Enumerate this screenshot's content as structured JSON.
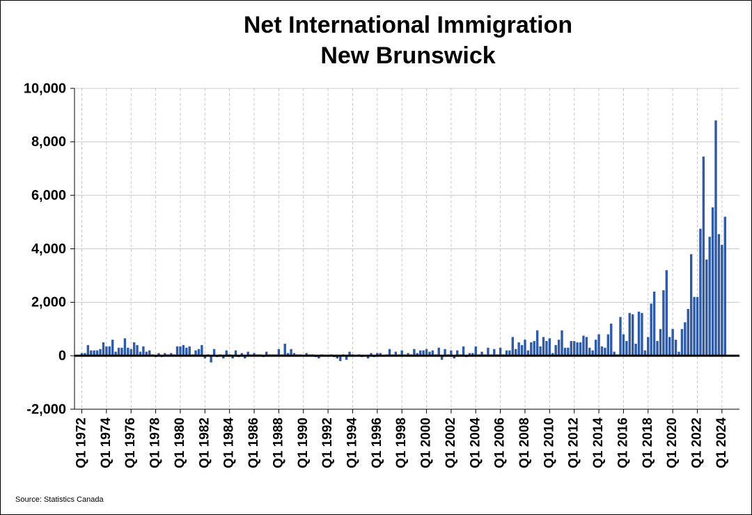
{
  "chart_data": {
    "type": "bar",
    "title": [
      "Net International Immigration",
      "New Brunswick"
    ],
    "source": "Source: Statistics Canada",
    "color": "#2e5aa8",
    "grid": true,
    "ylim": [
      -2000,
      10000
    ],
    "yticks": [
      {
        "value": -2000,
        "label": "-2,000"
      },
      0,
      {
        "value": 2000,
        "label": "2,000"
      },
      {
        "value": 4000,
        "label": "4,000"
      },
      {
        "value": 6000,
        "label": "6,000"
      },
      {
        "value": 8000,
        "label": "8,000"
      },
      {
        "value": 10000,
        "label": "10,000"
      }
    ],
    "categories": [
      "Q1 1972",
      null,
      null,
      null,
      null,
      null,
      null,
      null,
      "Q1 1974",
      null,
      null,
      null,
      null,
      null,
      null,
      null,
      "Q1 1976",
      null,
      null,
      null,
      null,
      null,
      null,
      null,
      "Q1 1978",
      null,
      null,
      null,
      null,
      null,
      null,
      null,
      "Q1 1980",
      null,
      null,
      null,
      null,
      null,
      null,
      null,
      "Q1 1982",
      null,
      null,
      null,
      null,
      null,
      null,
      null,
      "Q1 1984",
      null,
      null,
      null,
      null,
      null,
      null,
      null,
      "Q1 1986",
      null,
      null,
      null,
      null,
      null,
      null,
      null,
      "Q1 1988",
      null,
      null,
      null,
      null,
      null,
      null,
      null,
      "Q1 1990",
      null,
      null,
      null,
      null,
      null,
      null,
      null,
      "Q1 1992",
      null,
      null,
      null,
      null,
      null,
      null,
      null,
      "Q1 1994",
      null,
      null,
      null,
      null,
      null,
      null,
      null,
      "Q1 1996",
      null,
      null,
      null,
      null,
      null,
      null,
      null,
      "Q1 1998",
      null,
      null,
      null,
      null,
      null,
      null,
      null,
      "Q1 2000",
      null,
      null,
      null,
      null,
      null,
      null,
      null,
      "Q1 2002",
      null,
      null,
      null,
      null,
      null,
      null,
      null,
      "Q1 2004",
      null,
      null,
      null,
      null,
      null,
      null,
      null,
      "Q1 2006",
      null,
      null,
      null,
      null,
      null,
      null,
      null,
      "Q1 2008",
      null,
      null,
      null,
      null,
      null,
      null,
      null,
      "Q1 2010",
      null,
      null,
      null,
      null,
      null,
      null,
      null,
      "Q1 2012",
      null,
      null,
      null,
      null,
      null,
      null,
      null,
      "Q1 2014",
      null,
      null,
      null,
      null,
      null,
      null,
      null,
      "Q1 2016",
      null,
      null,
      null,
      null,
      null,
      null,
      null,
      "Q1 2018",
      null,
      null,
      null,
      null,
      null,
      null,
      null,
      "Q1 2020",
      null,
      null,
      null,
      null,
      null,
      null,
      null,
      "Q1 2022",
      null,
      null,
      null,
      null,
      null,
      null,
      null,
      "Q1 2024",
      null
    ],
    "values": [
      100,
      100,
      400,
      200,
      200,
      200,
      250,
      500,
      350,
      350,
      600,
      150,
      300,
      300,
      650,
      300,
      250,
      500,
      400,
      150,
      350,
      150,
      200,
      50,
      -50,
      100,
      -50,
      100,
      50,
      100,
      50,
      350,
      350,
      400,
      300,
      350,
      50,
      200,
      250,
      400,
      -100,
      50,
      -250,
      250,
      -50,
      50,
      -100,
      200,
      50,
      -100,
      200,
      -50,
      100,
      -100,
      150,
      50,
      100,
      50,
      50,
      -50,
      150,
      50,
      50,
      50,
      250,
      50,
      450,
      100,
      250,
      100,
      50,
      50,
      0,
      100,
      50,
      50,
      -50,
      -100,
      50,
      0,
      0,
      50,
      -50,
      -100,
      -200,
      50,
      -150,
      150,
      50,
      0,
      50,
      -50,
      0,
      -100,
      100,
      -50,
      100,
      100,
      0,
      50,
      250,
      50,
      150,
      50,
      200,
      50,
      100,
      50,
      250,
      100,
      200,
      200,
      250,
      150,
      200,
      50,
      300,
      -150,
      250,
      50,
      200,
      -100,
      200,
      50,
      350,
      -50,
      100,
      100,
      350,
      50,
      150,
      50,
      300,
      50,
      250,
      50,
      300,
      50,
      200,
      200,
      700,
      250,
      500,
      400,
      600,
      200,
      500,
      550,
      950,
      350,
      700,
      550,
      650,
      100,
      400,
      600,
      950,
      300,
      300,
      550,
      550,
      500,
      500,
      750,
      700,
      300,
      200,
      600,
      800,
      350,
      300,
      800,
      1200,
      150,
      50,
      1450,
      800,
      550,
      1600,
      1550,
      450,
      1650,
      1600,
      200,
      700,
      1950,
      2400,
      550,
      1000,
      2450,
      3200,
      700,
      1000,
      600,
      150,
      1000,
      1250,
      1750,
      3800,
      2200,
      2200,
      4750,
      7450,
      3600,
      4450,
      5550,
      8800,
      4550,
      4150,
      5200
    ]
  }
}
